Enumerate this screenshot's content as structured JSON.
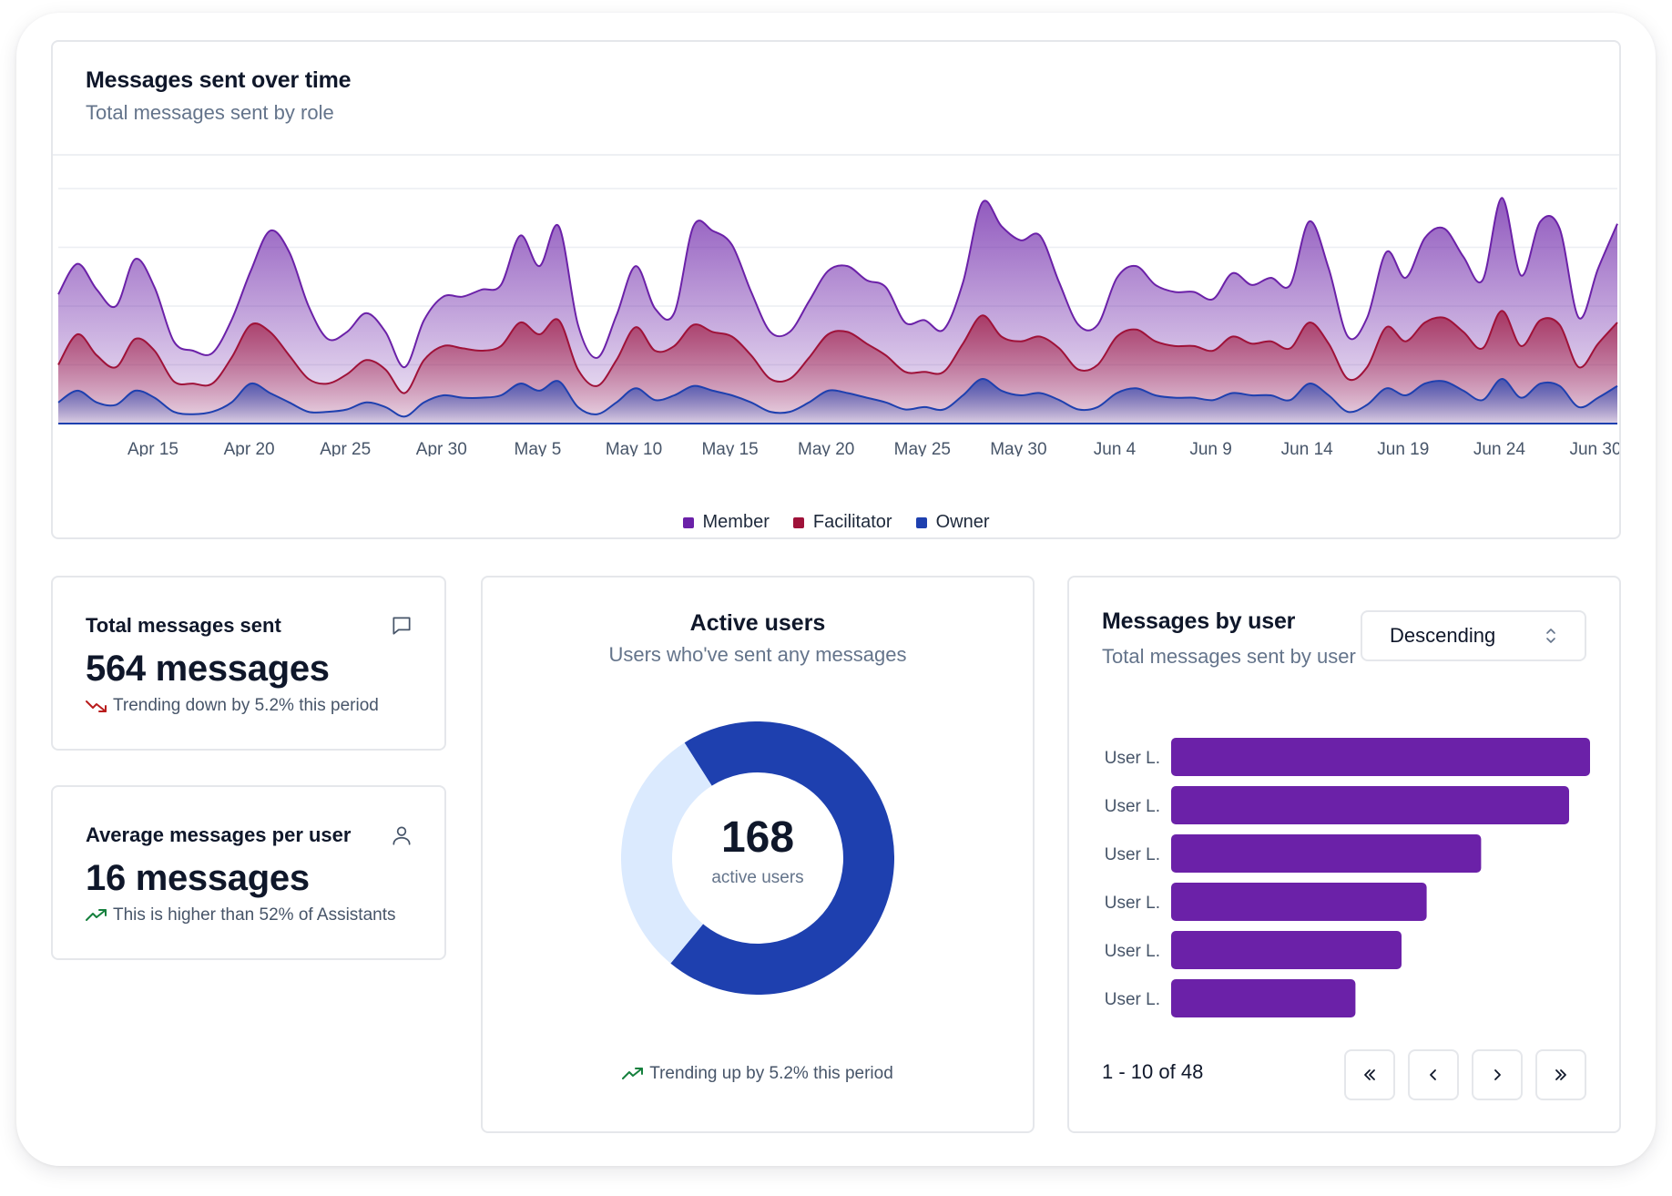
{
  "colors": {
    "member": "#6b21a8",
    "facilitator": "#9f1239",
    "owner": "#1e40af",
    "owner_light": "#dbeafe",
    "trend_down": "#b91c1c",
    "trend_up": "#15803d"
  },
  "time_chart": {
    "title": "Messages sent over time",
    "subtitle": "Total messages sent by role",
    "x_tick_labels": [
      "Apr 15",
      "Apr 20",
      "Apr 25",
      "Apr 30",
      "May 5",
      "May 10",
      "May 15",
      "May 20",
      "May 25",
      "May 30",
      "Jun 4",
      "Jun 9",
      "Jun 14",
      "Jun 19",
      "Jun 24",
      "Jun 30"
    ],
    "legend": [
      "Member",
      "Facilitator",
      "Owner"
    ]
  },
  "chart_data": [
    {
      "type": "area",
      "title": "Messages sent over time",
      "subtitle": "Total messages sent by role",
      "x_start": "Apr 10",
      "x_end": "Jun 30",
      "ylim": [
        0,
        100
      ],
      "grid": true,
      "legend_position": "bottom-center",
      "series": [
        {
          "name": "Member",
          "values": [
            55,
            68,
            57,
            50,
            70,
            58,
            35,
            31,
            30,
            44,
            65,
            82,
            73,
            50,
            36,
            39,
            47,
            39,
            24,
            44,
            54,
            54,
            57,
            59,
            80,
            67,
            84,
            42,
            28,
            46,
            67,
            49,
            47,
            84,
            82,
            76,
            56,
            39,
            39,
            52,
            65,
            67,
            61,
            58,
            43,
            44,
            40,
            60,
            94,
            84,
            78,
            80,
            60,
            42,
            42,
            62,
            67,
            59,
            56,
            56,
            53,
            64,
            59,
            62,
            59,
            86,
            66,
            37,
            45,
            73,
            62,
            79,
            83,
            71,
            61,
            96,
            63,
            86,
            83,
            45,
            66,
            85
          ]
        },
        {
          "name": "Facilitator",
          "values": [
            25,
            38,
            29,
            24,
            36,
            31,
            18,
            17,
            17,
            28,
            42,
            39,
            29,
            19,
            17,
            21,
            27,
            23,
            13,
            27,
            33,
            32,
            31,
            33,
            43,
            38,
            44,
            23,
            16,
            27,
            41,
            31,
            33,
            42,
            39,
            37,
            29,
            19,
            19,
            28,
            38,
            39,
            34,
            29,
            22,
            22,
            22,
            34,
            46,
            37,
            35,
            37,
            32,
            23,
            25,
            37,
            40,
            35,
            33,
            33,
            31,
            37,
            34,
            35,
            32,
            43,
            34,
            19,
            24,
            41,
            35,
            43,
            45,
            39,
            32,
            48,
            33,
            44,
            42,
            24,
            34,
            43
          ]
        },
        {
          "name": "Owner",
          "values": [
            9,
            14,
            9,
            8,
            14,
            11,
            5,
            4,
            5,
            9,
            17,
            13,
            9,
            5,
            5,
            6,
            9,
            7,
            3,
            9,
            12,
            11,
            11,
            12,
            17,
            14,
            18,
            7,
            4,
            9,
            15,
            10,
            12,
            16,
            14,
            12,
            9,
            5,
            5,
            9,
            14,
            13,
            11,
            9,
            6,
            7,
            6,
            12,
            19,
            14,
            12,
            13,
            10,
            6,
            7,
            13,
            15,
            12,
            11,
            11,
            10,
            13,
            12,
            12,
            10,
            17,
            12,
            5,
            8,
            15,
            12,
            17,
            18,
            14,
            10,
            19,
            11,
            17,
            16,
            7,
            11,
            16
          ]
        }
      ]
    },
    {
      "type": "pie",
      "title": "Active users",
      "subtitle": "Users who've sent any messages",
      "center_value": "168",
      "center_label": "active users",
      "slices": [
        {
          "value": 70
        },
        {
          "value": 30
        }
      ]
    },
    {
      "type": "bar",
      "orientation": "horizontal",
      "title": "Messages by user",
      "subtitle": "Total messages sent by user",
      "categories": [
        "User L.",
        "User L.",
        "User L.",
        "User L.",
        "User L.",
        "User L."
      ],
      "values": [
        100,
        95,
        74,
        61,
        55,
        44
      ]
    }
  ],
  "kpis": [
    {
      "title": "Total messages sent",
      "value": "564 messages",
      "trend": "Trending down by 5.2% this period",
      "icon": "chat-bubble-icon",
      "direction": "down"
    },
    {
      "title": "Average messages per user",
      "value": "16 messages",
      "trend": "This is higher than 52% of Assistants",
      "icon": "user-icon",
      "direction": "up"
    }
  ],
  "active_users": {
    "title": "Active users",
    "subtitle": "Users who've sent any messages",
    "value": "168",
    "label": "active users",
    "trend": "Trending up by 5.2% this period"
  },
  "messages_by_user": {
    "title": "Messages by user",
    "subtitle": "Total messages sent by user",
    "sort_value": "Descending",
    "pagination": "1 - 10 of 48"
  }
}
